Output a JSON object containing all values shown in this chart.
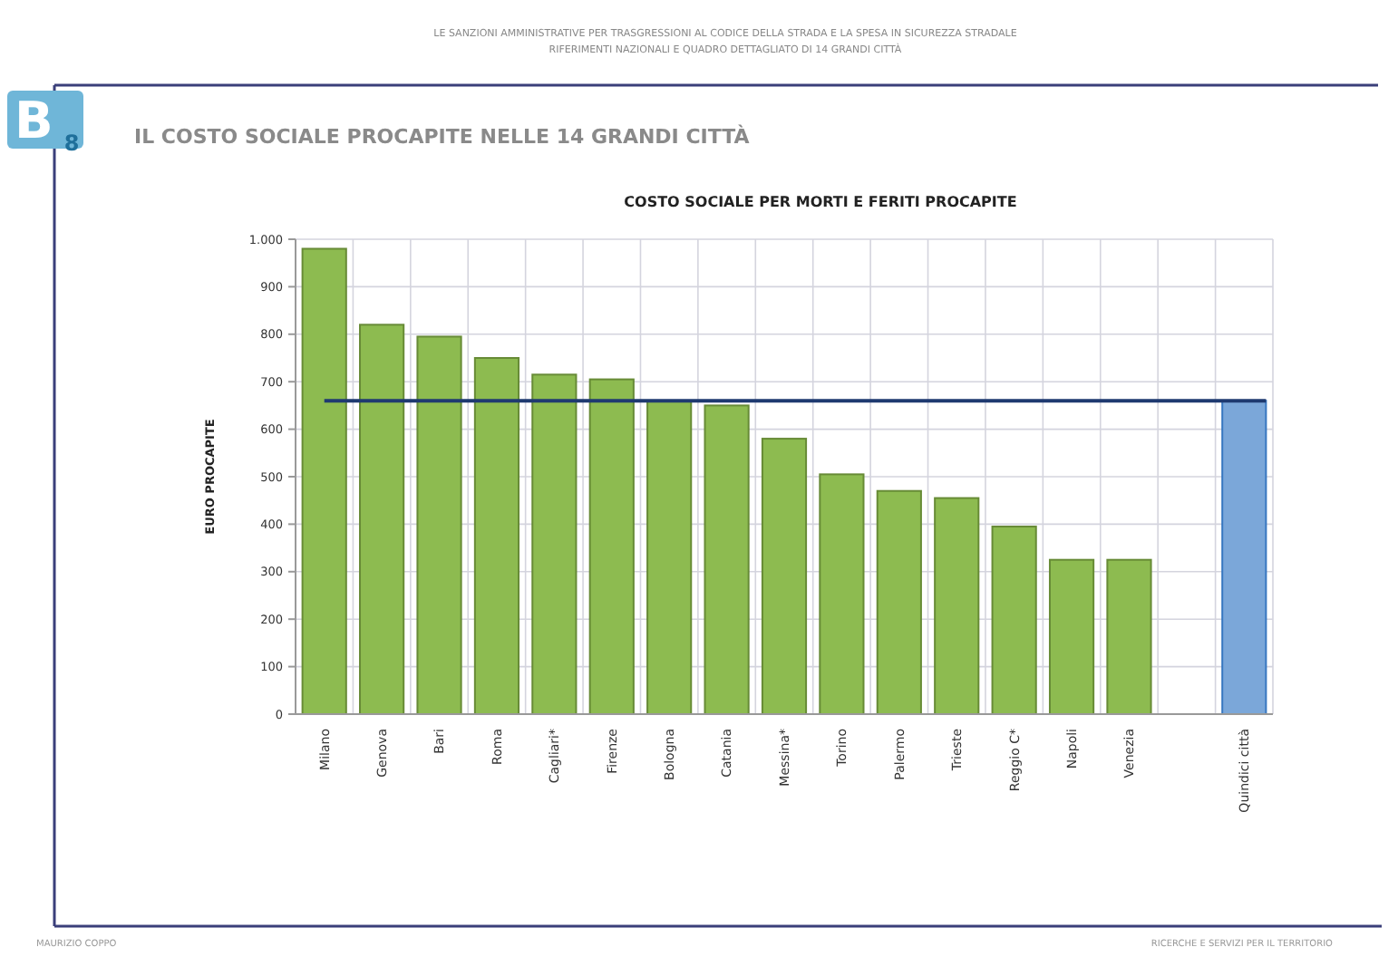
{
  "chart_data": {
    "type": "bar",
    "title": "COSTO SOCIALE PER MORTI E FERITI PROCAPITE",
    "subtitle": "IL COSTO SOCIALE PROCAPITE NELLE 14 GRANDI CITTÀ",
    "ylabel": "EURO PROCAPITE",
    "annotations": [
      "LE SANZIONI AMMINISTRATIVE PER TRASGRESSIONI AL CODICE DELLA STRADA E LA SPESA IN SICUREZZA STRADALE",
      "RIFERIMENTI NAZIONALI E QUADRO DETTAGLIATO DI 14 GRANDI CITTÀ",
      "B$_{8}$",
      "MAURIZIO COPPO",
      "RICERCHE E SERVIZI PER IL TERRITORIO"
    ],
    "categories": [
      "Milano",
      "Genova",
      "Bari",
      "Roma",
      "Cagliari*",
      "Firenze",
      "Bologna",
      "Catania",
      "Messina*",
      "Torino",
      "Palermo",
      "Trieste",
      "Reggio C*",
      "Napoli",
      "Venezia",
      null,
      "Quindici città"
    ],
    "values": [
      980,
      820,
      795,
      750,
      715,
      705,
      660,
      650,
      580,
      505,
      470,
      455,
      395,
      325,
      325,
      null,
      660
    ],
    "colors": [
      "#8dbb50",
      "#8dbb50",
      "#8dbb50",
      "#8dbb50",
      "#8dbb50",
      "#8dbb50",
      "#8dbb50",
      "#8dbb50",
      "#8dbb50",
      "#8dbb50",
      "#8dbb50",
      "#8dbb50",
      "#8dbb50",
      "#8dbb50",
      "#8dbb50",
      null,
      "#7ba7d9"
    ],
    "ylim": [
      0,
      1000
    ],
    "yticks": [
      0,
      100,
      200,
      300,
      400,
      500,
      600,
      700,
      800,
      900,
      {
        "value": 1000,
        "label": "1.000"
      }
    ],
    "ref_lines": [
      {
        "axis": "y",
        "value": 660,
        "color": "#1f3a70"
      }
    ],
    "grid": true
  }
}
